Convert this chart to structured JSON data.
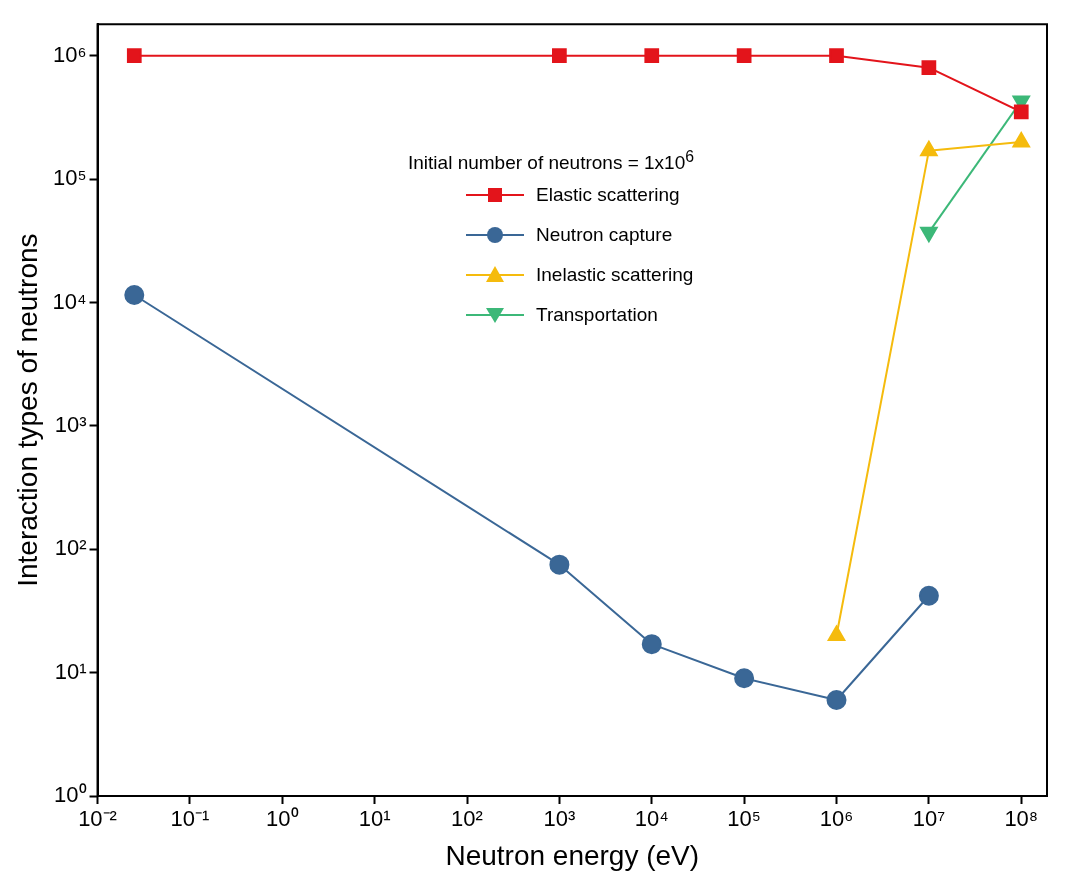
{
  "chart_data": {
    "type": "line",
    "xlabel": "Neutron energy (eV)",
    "ylabel": "Interaction types of neutrons",
    "log": "xy",
    "legend": "top",
    "legend_title": "Initial number of neutrons = 1x10$^{6}$",
    "grid": false,
    "xlim": [
      0.01,
      190000000
    ],
    "ylim": [
      1,
      1800000
    ],
    "xticks": [
      {
        "value": 0.01,
        "label": "10⁻²"
      },
      {
        "value": 0.1,
        "label": "10⁻¹"
      },
      {
        "value": 1,
        "label": "10⁰"
      },
      {
        "value": 10,
        "label": "10¹"
      },
      {
        "value": 100,
        "label": "10²"
      },
      {
        "value": 1000,
        "label": "10³"
      },
      {
        "value": 10000,
        "label": "10⁴"
      },
      {
        "value": 100000,
        "label": "10⁵"
      },
      {
        "value": 1000000,
        "label": "10⁶"
      },
      {
        "value": 10000000,
        "label": "10⁷"
      },
      {
        "value": 100000000,
        "label": "10⁸"
      }
    ],
    "yticks": [
      {
        "value": 1,
        "label": "10⁰"
      },
      {
        "value": 10,
        "label": "10¹"
      },
      {
        "value": 100,
        "label": "10²"
      },
      {
        "value": 1000,
        "label": "10³"
      },
      {
        "value": 10000,
        "label": "10⁴"
      },
      {
        "value": 100000,
        "label": "10⁵"
      },
      {
        "value": 1000000,
        "label": "10⁶"
      }
    ],
    "series": [
      {
        "name": "Elastic scattering",
        "color": "#e3141b",
        "marker": "square",
        "x": [
          0.025,
          1000,
          10000,
          100000,
          1000000,
          10000000,
          100000000
        ],
        "values": [
          1000000,
          1000000,
          1000000,
          1000000,
          1000000,
          800000,
          350000
        ]
      },
      {
        "name": "Neutron capture",
        "color": "#3a6796",
        "marker": "circle",
        "x": [
          0.025,
          1000,
          10000,
          100000,
          1000000,
          10000000
        ],
        "values": [
          11500,
          75,
          17,
          9,
          6,
          42
        ]
      },
      {
        "name": "Inelastic scattering",
        "color": "#f5bb0d",
        "marker": "triangle",
        "x": [
          1000000,
          10000000,
          100000000
        ],
        "values": [
          20,
          170000,
          200000
        ]
      },
      {
        "name": "Transportation",
        "color": "#3cb878",
        "marker": "triangle-down",
        "x": [
          10000000,
          100000000
        ],
        "values": [
          37000,
          430000
        ]
      }
    ]
  }
}
